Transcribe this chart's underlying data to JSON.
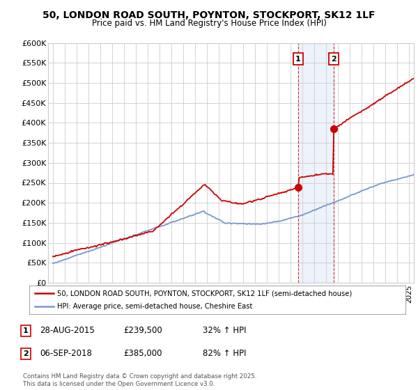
{
  "title": "50, LONDON ROAD SOUTH, POYNTON, STOCKPORT, SK12 1LF",
  "subtitle": "Price paid vs. HM Land Registry's House Price Index (HPI)",
  "ylabel_values": [
    "£0",
    "£50K",
    "£100K",
    "£150K",
    "£200K",
    "£250K",
    "£300K",
    "£350K",
    "£400K",
    "£450K",
    "£500K",
    "£550K",
    "£600K"
  ],
  "ylim": [
    0,
    600000
  ],
  "yticks": [
    0,
    50000,
    100000,
    150000,
    200000,
    250000,
    300000,
    350000,
    400000,
    450000,
    500000,
    550000,
    600000
  ],
  "xlim_start": 1994.6,
  "xlim_end": 2025.4,
  "purchase1_x": 2015.65,
  "purchase1_y": 239500,
  "purchase2_x": 2018.68,
  "purchase2_y": 385000,
  "vline1_x": 2015.65,
  "vline2_x": 2018.68,
  "shading_start": 2015.65,
  "shading_end": 2018.68,
  "legend_line1": "50, LONDON ROAD SOUTH, POYNTON, STOCKPORT, SK12 1LF (semi-detached house)",
  "legend_line2": "HPI: Average price, semi-detached house, Cheshire East",
  "footnote": "Contains HM Land Registry data © Crown copyright and database right 2025.\nThis data is licensed under the Open Government Licence v3.0.",
  "red_color": "#cc0000",
  "blue_color": "#7799cc",
  "shading_color": "#ccddf5",
  "background_color": "#ffffff",
  "grid_color": "#cccccc"
}
